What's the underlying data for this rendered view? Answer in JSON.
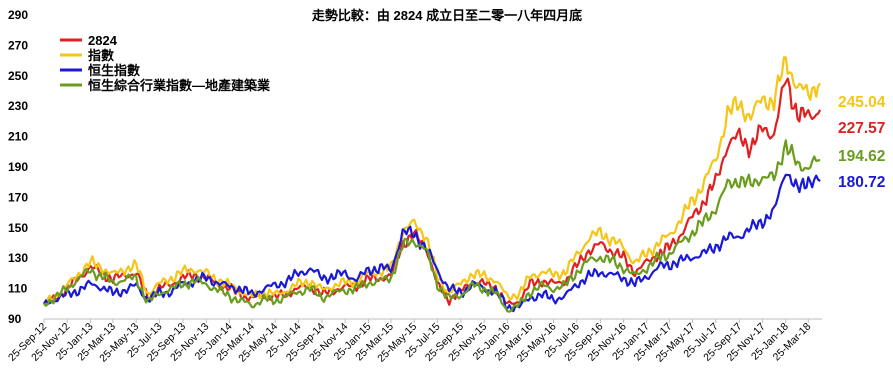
{
  "chart_data": {
    "type": "line",
    "title": "走勢比較：由 2824 成立日至二零一八年四月底",
    "ylim": [
      90,
      290
    ],
    "yticks": [
      90,
      110,
      130,
      150,
      170,
      190,
      210,
      230,
      250,
      270,
      290
    ],
    "xticks": [
      "25-Sep-12",
      "25-Nov-12",
      "25-Jan-13",
      "25-Mar-13",
      "25-May-13",
      "25-Jul-13",
      "25-Sep-13",
      "25-Nov-13",
      "25-Jan-14",
      "25-Mar-14",
      "25-May-14",
      "25-Jul-14",
      "25-Sep-14",
      "25-Nov-14",
      "25-Jan-15",
      "25-Mar-15",
      "25-May-15",
      "25-Jul-15",
      "25-Sep-15",
      "25-Nov-15",
      "25-Jan-16",
      "25-Mar-16",
      "25-May-16",
      "25-Jul-16",
      "25-Sep-16",
      "25-Nov-16",
      "25-Jan-17",
      "25-Mar-17",
      "25-May-17",
      "25-Jul-17",
      "25-Sep-17",
      "25-Nov-17",
      "25-Jan-18",
      "25-Mar-18"
    ],
    "legend_position": "top-left",
    "grid": false,
    "series": [
      {
        "name": "2824",
        "color": "#e02020",
        "end_label": "227.57",
        "points": [
          [
            "2012-09-25",
            100
          ],
          [
            "2012-10-25",
            104
          ],
          [
            "2012-11-25",
            110
          ],
          [
            "2012-12-25",
            117
          ],
          [
            "2013-01-25",
            124
          ],
          [
            "2013-02-25",
            120
          ],
          [
            "2013-03-25",
            116
          ],
          [
            "2013-04-25",
            119
          ],
          [
            "2013-05-25",
            120
          ],
          [
            "2013-06-25",
            104
          ],
          [
            "2013-07-25",
            110
          ],
          [
            "2013-08-25",
            113
          ],
          [
            "2013-09-25",
            117
          ],
          [
            "2013-10-25",
            119
          ],
          [
            "2013-11-25",
            117
          ],
          [
            "2013-12-25",
            113
          ],
          [
            "2014-01-25",
            110
          ],
          [
            "2014-02-25",
            106
          ],
          [
            "2014-03-25",
            103
          ],
          [
            "2014-04-25",
            106
          ],
          [
            "2014-05-25",
            104
          ],
          [
            "2014-06-25",
            107
          ],
          [
            "2014-07-25",
            110
          ],
          [
            "2014-08-25",
            112
          ],
          [
            "2014-09-25",
            106
          ],
          [
            "2014-10-25",
            109
          ],
          [
            "2014-11-25",
            111
          ],
          [
            "2014-12-25",
            112
          ],
          [
            "2015-01-25",
            116
          ],
          [
            "2015-02-25",
            117
          ],
          [
            "2015-03-25",
            118
          ],
          [
            "2015-04-25",
            140
          ],
          [
            "2015-05-25",
            145
          ],
          [
            "2015-06-25",
            138
          ],
          [
            "2015-07-25",
            112
          ],
          [
            "2015-08-25",
            103
          ],
          [
            "2015-09-25",
            108
          ],
          [
            "2015-10-25",
            115
          ],
          [
            "2015-11-25",
            113
          ],
          [
            "2015-12-25",
            111
          ],
          [
            "2016-01-25",
            99
          ],
          [
            "2016-02-25",
            102
          ],
          [
            "2016-03-25",
            113
          ],
          [
            "2016-04-25",
            115
          ],
          [
            "2016-05-25",
            113
          ],
          [
            "2016-06-25",
            115
          ],
          [
            "2016-07-25",
            125
          ],
          [
            "2016-08-25",
            135
          ],
          [
            "2016-09-25",
            139
          ],
          [
            "2016-10-25",
            135
          ],
          [
            "2016-11-25",
            130
          ],
          [
            "2016-12-25",
            121
          ],
          [
            "2017-01-25",
            127
          ],
          [
            "2017-02-25",
            133
          ],
          [
            "2017-03-25",
            137
          ],
          [
            "2017-04-25",
            146
          ],
          [
            "2017-05-25",
            157
          ],
          [
            "2017-06-25",
            168
          ],
          [
            "2017-07-25",
            180
          ],
          [
            "2017-08-25",
            205
          ],
          [
            "2017-09-25",
            210
          ],
          [
            "2017-10-25",
            203
          ],
          [
            "2017-11-25",
            215
          ],
          [
            "2017-12-25",
            212
          ],
          [
            "2018-01-25",
            248
          ],
          [
            "2018-02-25",
            225
          ],
          [
            "2018-03-25",
            223
          ],
          [
            "2018-04-25",
            227.57
          ]
        ]
      },
      {
        "name": "指數",
        "color": "#f5c518",
        "end_label": "245.04",
        "points": [
          [
            "2012-09-25",
            100
          ],
          [
            "2012-10-25",
            105
          ],
          [
            "2012-11-25",
            112
          ],
          [
            "2012-12-25",
            120
          ],
          [
            "2013-01-25",
            127
          ],
          [
            "2013-02-25",
            124
          ],
          [
            "2013-03-25",
            119
          ],
          [
            "2013-04-25",
            123
          ],
          [
            "2013-05-25",
            125
          ],
          [
            "2013-06-25",
            107
          ],
          [
            "2013-07-25",
            113
          ],
          [
            "2013-08-25",
            117
          ],
          [
            "2013-09-25",
            121
          ],
          [
            "2013-10-25",
            123
          ],
          [
            "2013-11-25",
            120
          ],
          [
            "2013-12-25",
            116
          ],
          [
            "2014-01-25",
            112
          ],
          [
            "2014-02-25",
            108
          ],
          [
            "2014-03-25",
            105
          ],
          [
            "2014-04-25",
            108
          ],
          [
            "2014-05-25",
            106
          ],
          [
            "2014-06-25",
            109
          ],
          [
            "2014-07-25",
            113
          ],
          [
            "2014-08-25",
            115
          ],
          [
            "2014-09-25",
            109
          ],
          [
            "2014-10-25",
            112
          ],
          [
            "2014-11-25",
            114
          ],
          [
            "2014-12-25",
            115
          ],
          [
            "2015-01-25",
            120
          ],
          [
            "2015-02-25",
            121
          ],
          [
            "2015-03-25",
            123
          ],
          [
            "2015-04-25",
            148
          ],
          [
            "2015-05-25",
            153
          ],
          [
            "2015-06-25",
            145
          ],
          [
            "2015-07-25",
            117
          ],
          [
            "2015-08-25",
            108
          ],
          [
            "2015-09-25",
            113
          ],
          [
            "2015-10-25",
            120
          ],
          [
            "2015-11-25",
            118
          ],
          [
            "2015-12-25",
            116
          ],
          [
            "2016-01-25",
            104
          ],
          [
            "2016-02-25",
            107
          ],
          [
            "2016-03-25",
            118
          ],
          [
            "2016-04-25",
            121
          ],
          [
            "2016-05-25",
            119
          ],
          [
            "2016-06-25",
            121
          ],
          [
            "2016-07-25",
            132
          ],
          [
            "2016-08-25",
            143
          ],
          [
            "2016-09-25",
            147
          ],
          [
            "2016-10-25",
            142
          ],
          [
            "2016-11-25",
            137
          ],
          [
            "2016-12-25",
            127
          ],
          [
            "2017-01-25",
            133
          ],
          [
            "2017-02-25",
            140
          ],
          [
            "2017-03-25",
            145
          ],
          [
            "2017-04-25",
            156
          ],
          [
            "2017-05-25",
            168
          ],
          [
            "2017-06-25",
            180
          ],
          [
            "2017-07-25",
            195
          ],
          [
            "2017-08-25",
            225
          ],
          [
            "2017-09-25",
            232
          ],
          [
            "2017-10-25",
            222
          ],
          [
            "2017-11-25",
            236
          ],
          [
            "2017-12-25",
            232
          ],
          [
            "2018-01-25",
            262
          ],
          [
            "2018-02-25",
            241
          ],
          [
            "2018-03-25",
            240
          ],
          [
            "2018-04-25",
            245.04
          ]
        ]
      },
      {
        "name": "恒生指數",
        "color": "#1a1ad6",
        "end_label": "180.72",
        "points": [
          [
            "2012-09-25",
            100
          ],
          [
            "2012-10-25",
            103
          ],
          [
            "2012-11-25",
            106
          ],
          [
            "2012-12-25",
            109
          ],
          [
            "2013-01-25",
            113
          ],
          [
            "2013-02-25",
            111
          ],
          [
            "2013-03-25",
            107
          ],
          [
            "2013-04-25",
            109
          ],
          [
            "2013-05-25",
            112
          ],
          [
            "2013-06-25",
            103
          ],
          [
            "2013-07-25",
            107
          ],
          [
            "2013-08-25",
            108
          ],
          [
            "2013-09-25",
            113
          ],
          [
            "2013-10-25",
            115
          ],
          [
            "2013-11-25",
            117
          ],
          [
            "2013-12-25",
            114
          ],
          [
            "2014-01-25",
            111
          ],
          [
            "2014-02-25",
            110
          ],
          [
            "2014-03-25",
            106
          ],
          [
            "2014-04-25",
            110
          ],
          [
            "2014-05-25",
            112
          ],
          [
            "2014-06-25",
            115
          ],
          [
            "2014-07-25",
            120
          ],
          [
            "2014-08-25",
            123
          ],
          [
            "2014-09-25",
            117
          ],
          [
            "2014-10-25",
            118
          ],
          [
            "2014-11-25",
            120
          ],
          [
            "2014-12-25",
            116
          ],
          [
            "2015-01-25",
            122
          ],
          [
            "2015-02-25",
            124
          ],
          [
            "2015-03-25",
            122
          ],
          [
            "2015-04-25",
            147
          ],
          [
            "2015-05-25",
            146
          ],
          [
            "2015-06-25",
            137
          ],
          [
            "2015-07-25",
            122
          ],
          [
            "2015-08-25",
            110
          ],
          [
            "2015-09-25",
            107
          ],
          [
            "2015-10-25",
            113
          ],
          [
            "2015-11-25",
            110
          ],
          [
            "2015-12-25",
            108
          ],
          [
            "2016-01-25",
            98
          ],
          [
            "2016-02-25",
            98
          ],
          [
            "2016-03-25",
            104
          ],
          [
            "2016-04-25",
            106
          ],
          [
            "2016-05-25",
            103
          ],
          [
            "2016-06-25",
            105
          ],
          [
            "2016-07-25",
            113
          ],
          [
            "2016-08-25",
            118
          ],
          [
            "2016-09-25",
            121
          ],
          [
            "2016-10-25",
            119
          ],
          [
            "2016-11-25",
            117
          ],
          [
            "2016-12-25",
            113
          ],
          [
            "2017-01-25",
            118
          ],
          [
            "2017-02-25",
            124
          ],
          [
            "2017-03-25",
            126
          ],
          [
            "2017-04-25",
            128
          ],
          [
            "2017-05-25",
            131
          ],
          [
            "2017-06-25",
            133
          ],
          [
            "2017-07-25",
            138
          ],
          [
            "2017-08-25",
            143
          ],
          [
            "2017-09-25",
            145
          ],
          [
            "2017-10-25",
            149
          ],
          [
            "2017-11-25",
            155
          ],
          [
            "2017-12-25",
            160
          ],
          [
            "2018-01-25",
            189
          ],
          [
            "2018-02-25",
            174
          ],
          [
            "2018-03-25",
            182
          ],
          [
            "2018-04-25",
            180.72
          ]
        ]
      },
      {
        "name": "恒生綜合行業指數—地產建築業",
        "color": "#6a9c1e",
        "end_label": "194.62",
        "points": [
          [
            "2012-09-25",
            100
          ],
          [
            "2012-10-25",
            104
          ],
          [
            "2012-11-25",
            110
          ],
          [
            "2012-12-25",
            117
          ],
          [
            "2013-01-25",
            122
          ],
          [
            "2013-02-25",
            118
          ],
          [
            "2013-03-25",
            114
          ],
          [
            "2013-04-25",
            116
          ],
          [
            "2013-05-25",
            117
          ],
          [
            "2013-06-25",
            101
          ],
          [
            "2013-07-25",
            107
          ],
          [
            "2013-08-25",
            110
          ],
          [
            "2013-09-25",
            113
          ],
          [
            "2013-10-25",
            115
          ],
          [
            "2013-11-25",
            113
          ],
          [
            "2013-12-25",
            109
          ],
          [
            "2014-01-25",
            105
          ],
          [
            "2014-02-25",
            102
          ],
          [
            "2014-03-25",
            99
          ],
          [
            "2014-04-25",
            103
          ],
          [
            "2014-05-25",
            102
          ],
          [
            "2014-06-25",
            105
          ],
          [
            "2014-07-25",
            108
          ],
          [
            "2014-08-25",
            110
          ],
          [
            "2014-09-25",
            104
          ],
          [
            "2014-10-25",
            107
          ],
          [
            "2014-11-25",
            109
          ],
          [
            "2014-12-25",
            110
          ],
          [
            "2015-01-25",
            114
          ],
          [
            "2015-02-25",
            115
          ],
          [
            "2015-03-25",
            117
          ],
          [
            "2015-04-25",
            138
          ],
          [
            "2015-05-25",
            142
          ],
          [
            "2015-06-25",
            135
          ],
          [
            "2015-07-25",
            113
          ],
          [
            "2015-08-25",
            103
          ],
          [
            "2015-09-25",
            106
          ],
          [
            "2015-10-25",
            112
          ],
          [
            "2015-11-25",
            110
          ],
          [
            "2015-12-25",
            107
          ],
          [
            "2016-01-25",
            96
          ],
          [
            "2016-02-25",
            99
          ],
          [
            "2016-03-25",
            108
          ],
          [
            "2016-04-25",
            112
          ],
          [
            "2016-05-25",
            110
          ],
          [
            "2016-06-25",
            112
          ],
          [
            "2016-07-25",
            121
          ],
          [
            "2016-08-25",
            128
          ],
          [
            "2016-09-25",
            131
          ],
          [
            "2016-10-25",
            128
          ],
          [
            "2016-11-25",
            124
          ],
          [
            "2016-12-25",
            118
          ],
          [
            "2017-01-25",
            124
          ],
          [
            "2017-02-25",
            130
          ],
          [
            "2017-03-25",
            133
          ],
          [
            "2017-04-25",
            140
          ],
          [
            "2017-05-25",
            147
          ],
          [
            "2017-06-25",
            154
          ],
          [
            "2017-07-25",
            163
          ],
          [
            "2017-08-25",
            178
          ],
          [
            "2017-09-25",
            182
          ],
          [
            "2017-10-25",
            178
          ],
          [
            "2017-11-25",
            184
          ],
          [
            "2017-12-25",
            182
          ],
          [
            "2018-01-25",
            206
          ],
          [
            "2018-02-25",
            190
          ],
          [
            "2018-03-25",
            191
          ],
          [
            "2018-04-25",
            194.62
          ]
        ]
      }
    ]
  }
}
